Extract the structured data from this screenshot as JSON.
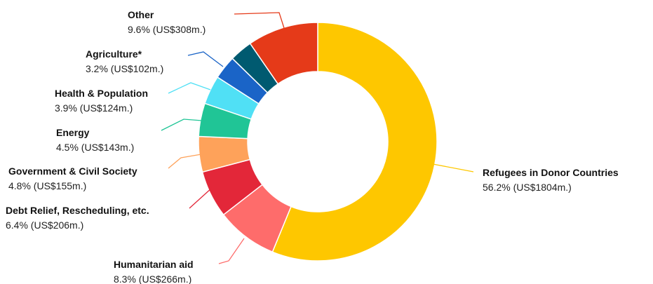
{
  "chart_data": {
    "type": "pie",
    "variant": "donut",
    "title": "",
    "slices": [
      {
        "name": "Refugees in Donor Countries",
        "percent": 56.2,
        "amount_label": "56.2% (US$1804m.)",
        "value": 1804,
        "color": "#fec700"
      },
      {
        "name": "Humanitarian aid",
        "percent": 8.3,
        "amount_label": "8.3% (US$266m.)",
        "value": 266,
        "color": "#fe6c6b"
      },
      {
        "name": "Debt Relief, Rescheduling, etc.",
        "percent": 6.4,
        "amount_label": "6.4% (US$206m.)",
        "value": 206,
        "color": "#e32739"
      },
      {
        "name": "Government & Civil Society",
        "percent": 4.8,
        "amount_label": "4.8% (US$155m.)",
        "value": 155,
        "color": "#fea25a"
      },
      {
        "name": "Energy",
        "percent": 4.5,
        "amount_label": "4.5% (US$143m.)",
        "value": 143,
        "color": "#20c596"
      },
      {
        "name": "Health & Population",
        "percent": 3.9,
        "amount_label": "3.9% (US$124m.)",
        "value": 124,
        "color": "#50e0f5"
      },
      {
        "name": "Agriculture*",
        "percent": 3.2,
        "amount_label": "3.2% (US$102m.)",
        "value": 102,
        "color": "#1a64c7"
      },
      {
        "name": "Other",
        "percent": 9.6,
        "amount_label": "9.6% (US$308m.)",
        "value": 308,
        "color": "#e53a19"
      }
    ],
    "extra_slices_unlabeled": [
      {
        "percent": 3.1,
        "color": "#005a70"
      }
    ]
  }
}
